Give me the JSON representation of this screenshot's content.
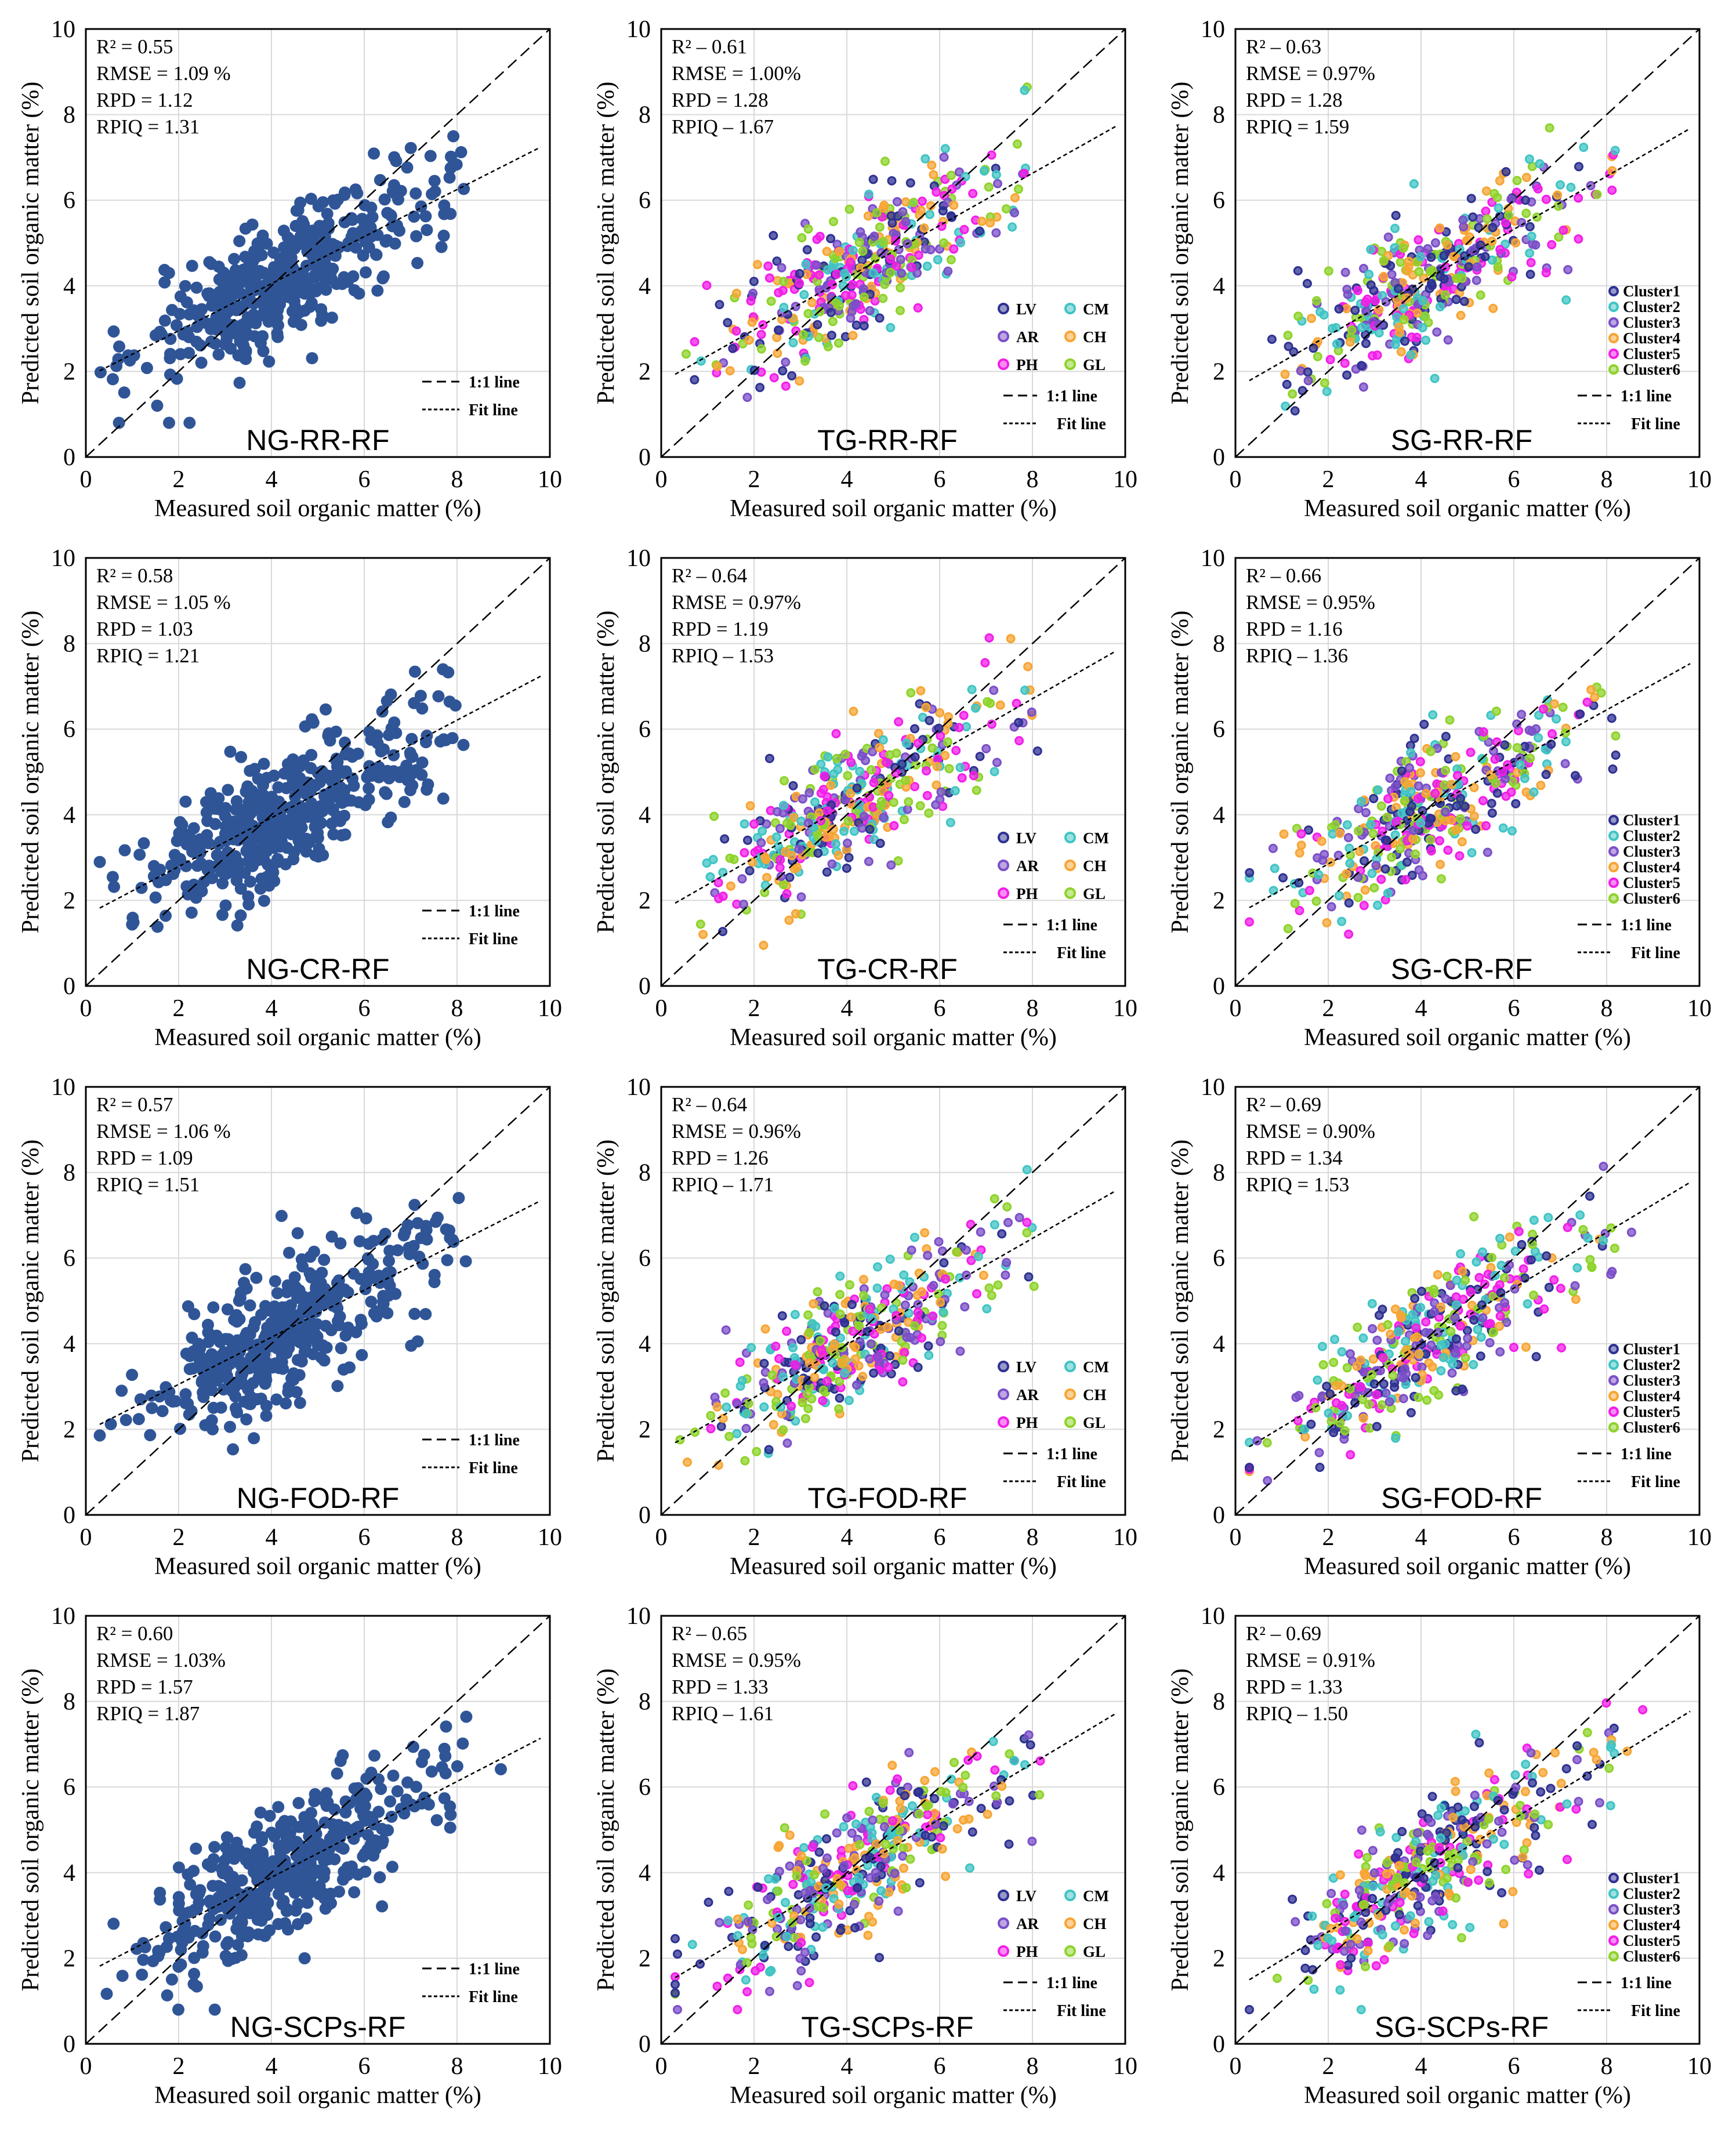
{
  "figure": {
    "rows": 4,
    "cols": 3,
    "x_axis_label": "Measured soil organic matter (%)",
    "y_axis_label": "Predicted soil organic matter (%)",
    "one_to_one_label": "1:1 line",
    "fit_line_label": "Fit line"
  },
  "legend_sets": {
    "TG": {
      "items": [
        {
          "label": "LV",
          "color": "#2E3192"
        },
        {
          "label": "CM",
          "color": "#40C4C4"
        },
        {
          "label": "AR",
          "color": "#7B4FC8"
        },
        {
          "label": "CH",
          "color": "#F7A534"
        },
        {
          "label": "PH",
          "color": "#F21EE8"
        },
        {
          "label": "GL",
          "color": "#8ED32A"
        }
      ]
    },
    "SG": {
      "items": [
        {
          "label": "Cluster1",
          "color": "#2E3192"
        },
        {
          "label": "Cluster2",
          "color": "#40C4C4"
        },
        {
          "label": "Cluster3",
          "color": "#7B4FC8"
        },
        {
          "label": "Cluster4",
          "color": "#F7A534"
        },
        {
          "label": "Cluster5",
          "color": "#F21EE8"
        },
        {
          "label": "Cluster6",
          "color": "#8ED32A"
        }
      ]
    }
  },
  "chart_data": [
    {
      "type": "scatter",
      "title": "NG-RR-RF",
      "group": "NG",
      "xlim": [
        0,
        10
      ],
      "ylim": [
        0,
        10
      ],
      "xticks": [
        0,
        2,
        4,
        6,
        8,
        10
      ],
      "yticks": [
        0,
        2,
        4,
        6,
        8,
        10
      ],
      "grid": true,
      "marker_color": "#2F5597",
      "fit_line": {
        "slope": 0.55,
        "intercept": 1.85
      },
      "stats": [
        "R² = 0.55",
        "RMSE = 1.09 %",
        "RPD = 1.12",
        "RPIQ = 1.31"
      ],
      "xlabel": "Measured soil organic matter (%)",
      "ylabel": "Predicted soil organic matter (%)"
    },
    {
      "type": "scatter",
      "title": "TG-RR-RF",
      "group": "TG",
      "xlim": [
        0,
        10
      ],
      "ylim": [
        0,
        10
      ],
      "xticks": [
        0,
        2,
        4,
        6,
        8,
        10
      ],
      "yticks": [
        0,
        2,
        4,
        6,
        8,
        10
      ],
      "grid": true,
      "fit_line": {
        "slope": 0.61,
        "intercept": 1.75
      },
      "stats": [
        "R² – 0.61",
        "RMSE = 1.00%",
        "RPD = 1.28",
        "RPIQ – 1.67"
      ],
      "legend_labels": [
        "LV",
        "CM",
        "AR",
        "CH",
        "PH",
        "GL"
      ],
      "xlabel": "Measured soil organic matter (%)",
      "ylabel": "Predicted soil organic matter (%)"
    },
    {
      "type": "scatter",
      "title": "SG-RR-RF",
      "group": "SG",
      "xlim": [
        0,
        10
      ],
      "ylim": [
        0,
        10
      ],
      "xticks": [
        0,
        2,
        4,
        6,
        8,
        10
      ],
      "yticks": [
        0,
        2,
        4,
        6,
        8,
        10
      ],
      "grid": true,
      "fit_line": {
        "slope": 0.62,
        "intercept": 1.6
      },
      "stats": [
        "R² – 0.63",
        "RMSE = 0.97%",
        "RPD = 1.28",
        "RPIQ = 1.59"
      ],
      "legend_labels": [
        "Cluster1",
        "Cluster2",
        "Cluster3",
        "Cluster4",
        "Cluster5",
        "Cluster6"
      ],
      "xlabel": "Measured soil organic matter (%)",
      "ylabel": "Predicted soil organic matter (%)"
    },
    {
      "type": "scatter",
      "title": "NG-CR-RF",
      "group": "NG",
      "xlim": [
        0,
        10
      ],
      "ylim": [
        0,
        10
      ],
      "xticks": [
        0,
        2,
        4,
        6,
        8,
        10
      ],
      "yticks": [
        0,
        2,
        4,
        6,
        8,
        10
      ],
      "grid": true,
      "marker_color": "#2F5597",
      "fit_line": {
        "slope": 0.57,
        "intercept": 1.65
      },
      "stats": [
        "R² = 0.58",
        "RMSE = 1.05 %",
        "RPD = 1.03",
        "RPIQ = 1.21"
      ],
      "xlabel": "Measured soil organic matter (%)",
      "ylabel": "Predicted soil organic matter (%)"
    },
    {
      "type": "scatter",
      "title": "TG-CR-RF",
      "group": "TG",
      "xlim": [
        0,
        10
      ],
      "ylim": [
        0,
        10
      ],
      "xticks": [
        0,
        2,
        4,
        6,
        8,
        10
      ],
      "yticks": [
        0,
        2,
        4,
        6,
        8,
        10
      ],
      "grid": true,
      "fit_line": {
        "slope": 0.62,
        "intercept": 1.75
      },
      "stats": [
        "R² – 0.64",
        "RMSE = 0.97%",
        "RPD = 1.19",
        "RPIQ – 1.53"
      ],
      "legend_labels": [
        "LV",
        "CM",
        "AR",
        "CH",
        "PH",
        "GL"
      ],
      "xlabel": "Measured soil organic matter (%)",
      "ylabel": "Predicted soil organic matter (%)"
    },
    {
      "type": "scatter",
      "title": "SG-CR-RF",
      "group": "SG",
      "xlim": [
        0,
        10
      ],
      "ylim": [
        0,
        10
      ],
      "xticks": [
        0,
        2,
        4,
        6,
        8,
        10
      ],
      "yticks": [
        0,
        2,
        4,
        6,
        8,
        10
      ],
      "grid": true,
      "fit_line": {
        "slope": 0.6,
        "intercept": 1.65
      },
      "stats": [
        "R² – 0.66",
        "RMSE = 0.95%",
        "RPD = 1.16",
        "RPIQ – 1.36"
      ],
      "legend_labels": [
        "Cluster1",
        "Cluster2",
        "Cluster3",
        "Cluster4",
        "Cluster5",
        "Cluster6"
      ],
      "xlabel": "Measured soil organic matter (%)",
      "ylabel": "Predicted soil organic matter (%)"
    },
    {
      "type": "scatter",
      "title": "NG-FOD-RF",
      "group": "NG",
      "xlim": [
        0,
        10
      ],
      "ylim": [
        0,
        10
      ],
      "xticks": [
        0,
        2,
        4,
        6,
        8,
        10
      ],
      "yticks": [
        0,
        2,
        4,
        6,
        8,
        10
      ],
      "grid": true,
      "marker_color": "#2F5597",
      "fit_line": {
        "slope": 0.55,
        "intercept": 1.95
      },
      "stats": [
        "R² = 0.57",
        "RMSE = 1.06 %",
        "RPD = 1.09",
        "RPIQ = 1.51"
      ],
      "xlabel": "Measured soil organic matter (%)",
      "ylabel": "Predicted soil organic matter (%)"
    },
    {
      "type": "scatter",
      "title": "TG-FOD-RF",
      "group": "TG",
      "xlim": [
        0,
        10
      ],
      "ylim": [
        0,
        10
      ],
      "xticks": [
        0,
        2,
        4,
        6,
        8,
        10
      ],
      "yticks": [
        0,
        2,
        4,
        6,
        8,
        10
      ],
      "grid": true,
      "fit_line": {
        "slope": 0.62,
        "intercept": 1.5
      },
      "stats": [
        "R² – 0.64",
        "RMSE = 0.96%",
        "RPD = 1.26",
        "RPIQ – 1.71"
      ],
      "legend_labels": [
        "LV",
        "CM",
        "AR",
        "CH",
        "PH",
        "GL"
      ],
      "xlabel": "Measured soil organic matter (%)",
      "ylabel": "Predicted soil organic matter (%)"
    },
    {
      "type": "scatter",
      "title": "SG-FOD-RF",
      "group": "SG",
      "xlim": [
        0,
        10
      ],
      "ylim": [
        0,
        10
      ],
      "xticks": [
        0,
        2,
        4,
        6,
        8,
        10
      ],
      "yticks": [
        0,
        2,
        4,
        6,
        8,
        10
      ],
      "grid": true,
      "fit_line": {
        "slope": 0.65,
        "intercept": 1.4
      },
      "stats": [
        "R² – 0.69",
        "RMSE = 0.90%",
        "RPD = 1.34",
        "RPIQ = 1.53"
      ],
      "legend_labels": [
        "Cluster1",
        "Cluster2",
        "Cluster3",
        "Cluster4",
        "Cluster5",
        "Cluster6"
      ],
      "xlabel": "Measured soil organic matter (%)",
      "ylabel": "Predicted soil organic matter (%)"
    },
    {
      "type": "scatter",
      "title": "NG-SCPs-RF",
      "group": "NG",
      "xlim": [
        0,
        10
      ],
      "ylim": [
        0,
        10
      ],
      "xticks": [
        0,
        2,
        4,
        6,
        8,
        10
      ],
      "yticks": [
        0,
        2,
        4,
        6,
        8,
        10
      ],
      "grid": true,
      "marker_color": "#2F5597",
      "fit_line": {
        "slope": 0.56,
        "intercept": 1.65
      },
      "stats": [
        "R² = 0.60",
        "RMSE = 1.03%",
        "RPD = 1.57",
        "RPIQ = 1.87"
      ],
      "xlabel": "Measured soil organic matter (%)",
      "ylabel": "Predicted soil organic matter (%)"
    },
    {
      "type": "scatter",
      "title": "TG-SCPs-RF",
      "group": "TG",
      "xlim": [
        0,
        10
      ],
      "ylim": [
        0,
        10
      ],
      "xticks": [
        0,
        2,
        4,
        6,
        8,
        10
      ],
      "yticks": [
        0,
        2,
        4,
        6,
        8,
        10
      ],
      "grid": true,
      "fit_line": {
        "slope": 0.65,
        "intercept": 1.35
      },
      "stats": [
        "R² – 0.65",
        "RMSE = 0.95%",
        "RPD = 1.33",
        "RPIQ – 1.61"
      ],
      "legend_labels": [
        "LV",
        "CM",
        "AR",
        "CH",
        "PH",
        "GL"
      ],
      "xlabel": "Measured soil organic matter (%)",
      "ylabel": "Predicted soil organic matter (%)"
    },
    {
      "type": "scatter",
      "title": "SG-SCPs-RF",
      "group": "SG",
      "xlim": [
        0,
        10
      ],
      "ylim": [
        0,
        10
      ],
      "xticks": [
        0,
        2,
        4,
        6,
        8,
        10
      ],
      "yticks": [
        0,
        2,
        4,
        6,
        8,
        10
      ],
      "grid": true,
      "fit_line": {
        "slope": 0.66,
        "intercept": 1.3
      },
      "stats": [
        "R² – 0.69",
        "RMSE = 0.91%",
        "RPD = 1.33",
        "RPIQ – 1.50"
      ],
      "legend_labels": [
        "Cluster1",
        "Cluster2",
        "Cluster3",
        "Cluster4",
        "Cluster5",
        "Cluster6"
      ],
      "xlabel": "Measured soil organic matter (%)",
      "ylabel": "Predicted soil organic matter (%)"
    }
  ]
}
